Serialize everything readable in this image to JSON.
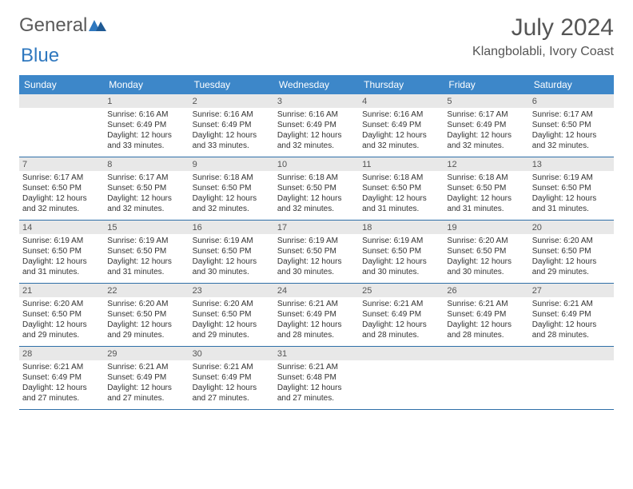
{
  "brand": {
    "part1": "General",
    "part2": "Blue"
  },
  "title": "July 2024",
  "location": "Klangbolabli, Ivory Coast",
  "header_bg": "#3d87c9",
  "day_band_bg": "#e8e8e8",
  "row_border": "#2f6fa8",
  "columns": [
    "Sunday",
    "Monday",
    "Tuesday",
    "Wednesday",
    "Thursday",
    "Friday",
    "Saturday"
  ],
  "weeks": [
    [
      {
        "day": "",
        "sunrise": "",
        "sunset": "",
        "daylight": ""
      },
      {
        "day": "1",
        "sunrise": "Sunrise: 6:16 AM",
        "sunset": "Sunset: 6:49 PM",
        "daylight": "Daylight: 12 hours and 33 minutes."
      },
      {
        "day": "2",
        "sunrise": "Sunrise: 6:16 AM",
        "sunset": "Sunset: 6:49 PM",
        "daylight": "Daylight: 12 hours and 33 minutes."
      },
      {
        "day": "3",
        "sunrise": "Sunrise: 6:16 AM",
        "sunset": "Sunset: 6:49 PM",
        "daylight": "Daylight: 12 hours and 32 minutes."
      },
      {
        "day": "4",
        "sunrise": "Sunrise: 6:16 AM",
        "sunset": "Sunset: 6:49 PM",
        "daylight": "Daylight: 12 hours and 32 minutes."
      },
      {
        "day": "5",
        "sunrise": "Sunrise: 6:17 AM",
        "sunset": "Sunset: 6:49 PM",
        "daylight": "Daylight: 12 hours and 32 minutes."
      },
      {
        "day": "6",
        "sunrise": "Sunrise: 6:17 AM",
        "sunset": "Sunset: 6:50 PM",
        "daylight": "Daylight: 12 hours and 32 minutes."
      }
    ],
    [
      {
        "day": "7",
        "sunrise": "Sunrise: 6:17 AM",
        "sunset": "Sunset: 6:50 PM",
        "daylight": "Daylight: 12 hours and 32 minutes."
      },
      {
        "day": "8",
        "sunrise": "Sunrise: 6:17 AM",
        "sunset": "Sunset: 6:50 PM",
        "daylight": "Daylight: 12 hours and 32 minutes."
      },
      {
        "day": "9",
        "sunrise": "Sunrise: 6:18 AM",
        "sunset": "Sunset: 6:50 PM",
        "daylight": "Daylight: 12 hours and 32 minutes."
      },
      {
        "day": "10",
        "sunrise": "Sunrise: 6:18 AM",
        "sunset": "Sunset: 6:50 PM",
        "daylight": "Daylight: 12 hours and 32 minutes."
      },
      {
        "day": "11",
        "sunrise": "Sunrise: 6:18 AM",
        "sunset": "Sunset: 6:50 PM",
        "daylight": "Daylight: 12 hours and 31 minutes."
      },
      {
        "day": "12",
        "sunrise": "Sunrise: 6:18 AM",
        "sunset": "Sunset: 6:50 PM",
        "daylight": "Daylight: 12 hours and 31 minutes."
      },
      {
        "day": "13",
        "sunrise": "Sunrise: 6:19 AM",
        "sunset": "Sunset: 6:50 PM",
        "daylight": "Daylight: 12 hours and 31 minutes."
      }
    ],
    [
      {
        "day": "14",
        "sunrise": "Sunrise: 6:19 AM",
        "sunset": "Sunset: 6:50 PM",
        "daylight": "Daylight: 12 hours and 31 minutes."
      },
      {
        "day": "15",
        "sunrise": "Sunrise: 6:19 AM",
        "sunset": "Sunset: 6:50 PM",
        "daylight": "Daylight: 12 hours and 31 minutes."
      },
      {
        "day": "16",
        "sunrise": "Sunrise: 6:19 AM",
        "sunset": "Sunset: 6:50 PM",
        "daylight": "Daylight: 12 hours and 30 minutes."
      },
      {
        "day": "17",
        "sunrise": "Sunrise: 6:19 AM",
        "sunset": "Sunset: 6:50 PM",
        "daylight": "Daylight: 12 hours and 30 minutes."
      },
      {
        "day": "18",
        "sunrise": "Sunrise: 6:19 AM",
        "sunset": "Sunset: 6:50 PM",
        "daylight": "Daylight: 12 hours and 30 minutes."
      },
      {
        "day": "19",
        "sunrise": "Sunrise: 6:20 AM",
        "sunset": "Sunset: 6:50 PM",
        "daylight": "Daylight: 12 hours and 30 minutes."
      },
      {
        "day": "20",
        "sunrise": "Sunrise: 6:20 AM",
        "sunset": "Sunset: 6:50 PM",
        "daylight": "Daylight: 12 hours and 29 minutes."
      }
    ],
    [
      {
        "day": "21",
        "sunrise": "Sunrise: 6:20 AM",
        "sunset": "Sunset: 6:50 PM",
        "daylight": "Daylight: 12 hours and 29 minutes."
      },
      {
        "day": "22",
        "sunrise": "Sunrise: 6:20 AM",
        "sunset": "Sunset: 6:50 PM",
        "daylight": "Daylight: 12 hours and 29 minutes."
      },
      {
        "day": "23",
        "sunrise": "Sunrise: 6:20 AM",
        "sunset": "Sunset: 6:50 PM",
        "daylight": "Daylight: 12 hours and 29 minutes."
      },
      {
        "day": "24",
        "sunrise": "Sunrise: 6:21 AM",
        "sunset": "Sunset: 6:49 PM",
        "daylight": "Daylight: 12 hours and 28 minutes."
      },
      {
        "day": "25",
        "sunrise": "Sunrise: 6:21 AM",
        "sunset": "Sunset: 6:49 PM",
        "daylight": "Daylight: 12 hours and 28 minutes."
      },
      {
        "day": "26",
        "sunrise": "Sunrise: 6:21 AM",
        "sunset": "Sunset: 6:49 PM",
        "daylight": "Daylight: 12 hours and 28 minutes."
      },
      {
        "day": "27",
        "sunrise": "Sunrise: 6:21 AM",
        "sunset": "Sunset: 6:49 PM",
        "daylight": "Daylight: 12 hours and 28 minutes."
      }
    ],
    [
      {
        "day": "28",
        "sunrise": "Sunrise: 6:21 AM",
        "sunset": "Sunset: 6:49 PM",
        "daylight": "Daylight: 12 hours and 27 minutes."
      },
      {
        "day": "29",
        "sunrise": "Sunrise: 6:21 AM",
        "sunset": "Sunset: 6:49 PM",
        "daylight": "Daylight: 12 hours and 27 minutes."
      },
      {
        "day": "30",
        "sunrise": "Sunrise: 6:21 AM",
        "sunset": "Sunset: 6:49 PM",
        "daylight": "Daylight: 12 hours and 27 minutes."
      },
      {
        "day": "31",
        "sunrise": "Sunrise: 6:21 AM",
        "sunset": "Sunset: 6:48 PM",
        "daylight": "Daylight: 12 hours and 27 minutes."
      },
      {
        "day": "",
        "sunrise": "",
        "sunset": "",
        "daylight": ""
      },
      {
        "day": "",
        "sunrise": "",
        "sunset": "",
        "daylight": ""
      },
      {
        "day": "",
        "sunrise": "",
        "sunset": "",
        "daylight": ""
      }
    ]
  ]
}
